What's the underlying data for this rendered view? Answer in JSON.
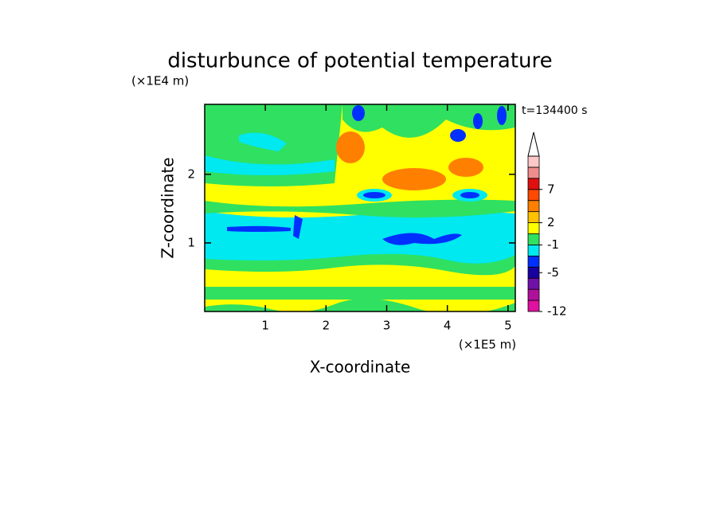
{
  "chart_data": {
    "type": "contour",
    "title": "disturbunce of potential temperature",
    "xlabel": "X-coordinate",
    "ylabel": "Z-coordinate",
    "x_unit_label": "(×1E5 m)",
    "y_unit_label": "(×1E4 m)",
    "annotation": "t=134400 s",
    "xlim": [
      0,
      5.12
    ],
    "ylim": [
      0,
      3.02
    ],
    "xticks": [
      1,
      2,
      3,
      4,
      5
    ],
    "yticks": [
      1,
      2
    ],
    "colorbar": {
      "colors": [
        "#e010a0",
        "#b0109c",
        "#7010a8",
        "#1800a0",
        "#0030ff",
        "#00e8f0",
        "#30e060",
        "#ffff00",
        "#ffc000",
        "#ff8000",
        "#ff4800",
        "#e01010",
        "#f08c8c",
        "#ffc8c8"
      ],
      "levels": [
        -12,
        -10,
        -8,
        -6,
        -4,
        -2,
        -1,
        0,
        2,
        3,
        5,
        7,
        9,
        11,
        13
      ],
      "ticks": [
        -12,
        -5,
        -1,
        2,
        7
      ]
    }
  }
}
